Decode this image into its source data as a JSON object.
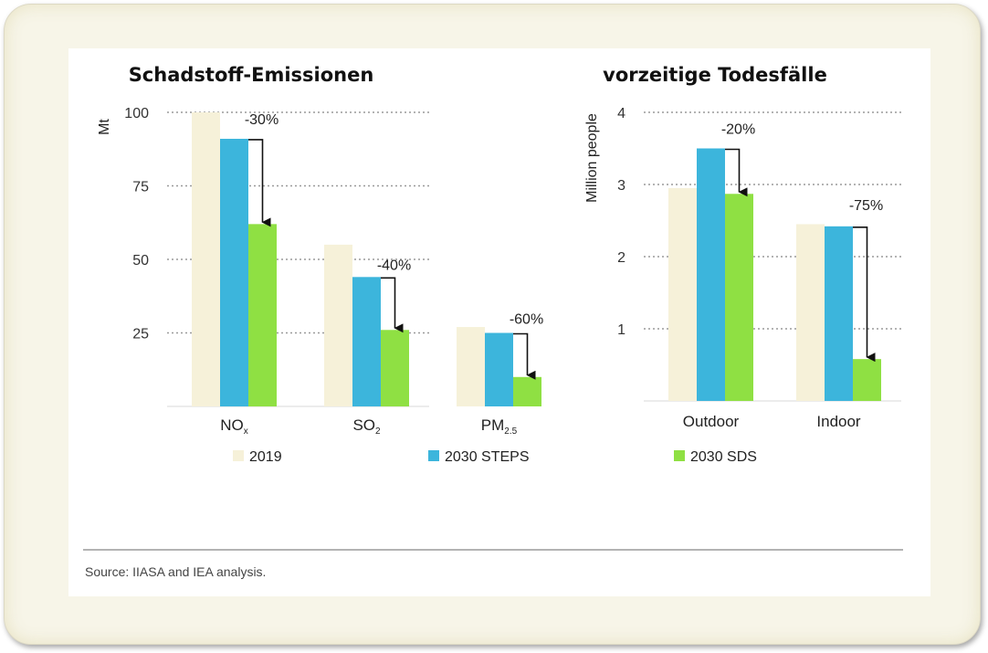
{
  "colors": {
    "y2019": "#f6f1d9",
    "steps": "#3cb5dc",
    "sds": "#8fe043"
  },
  "legend": [
    {
      "label": "2019",
      "series": "y2019"
    },
    {
      "label": "2030 STEPS",
      "series": "steps"
    },
    {
      "label": "2030 SDS",
      "series": "sds"
    }
  ],
  "source": "Source: IIASA and IEA analysis.",
  "chart_data": [
    {
      "type": "bar",
      "title": "Schadstoff-Emissionen",
      "ylabel": "Mt",
      "ylim": [
        0,
        100
      ],
      "yticks": [
        "25",
        "50",
        "75",
        "100"
      ],
      "grid": true,
      "categories": [
        {
          "main": "NO",
          "sub": "x"
        },
        {
          "main": "SO",
          "sub": "2"
        },
        {
          "main": "PM",
          "sub": "2.5"
        }
      ],
      "series": [
        {
          "name": "2019",
          "key": "y2019",
          "values": [
            100,
            55,
            27
          ]
        },
        {
          "name": "2030 STEPS",
          "key": "steps",
          "values": [
            91,
            44,
            25
          ]
        },
        {
          "name": "2030 SDS",
          "key": "sds",
          "values": [
            62,
            26,
            10
          ]
        }
      ],
      "annotations": [
        "-30%",
        "-40%",
        "-60%"
      ]
    },
    {
      "type": "bar",
      "title": "vorzeitige Todesfälle",
      "ylabel": "Million people",
      "ylim": [
        0,
        4
      ],
      "yticks": [
        "1",
        "2",
        "3",
        "4"
      ],
      "grid": true,
      "categories": [
        {
          "main": "Outdoor",
          "sub": ""
        },
        {
          "main": "Indoor",
          "sub": ""
        }
      ],
      "series": [
        {
          "name": "2019",
          "key": "y2019",
          "values": [
            2.95,
            2.45
          ]
        },
        {
          "name": "2030 STEPS",
          "key": "steps",
          "values": [
            3.5,
            2.42
          ]
        },
        {
          "name": "2030 SDS",
          "key": "sds",
          "values": [
            2.87,
            0.58
          ]
        }
      ],
      "annotations": [
        "-20%",
        "-75%"
      ]
    }
  ]
}
